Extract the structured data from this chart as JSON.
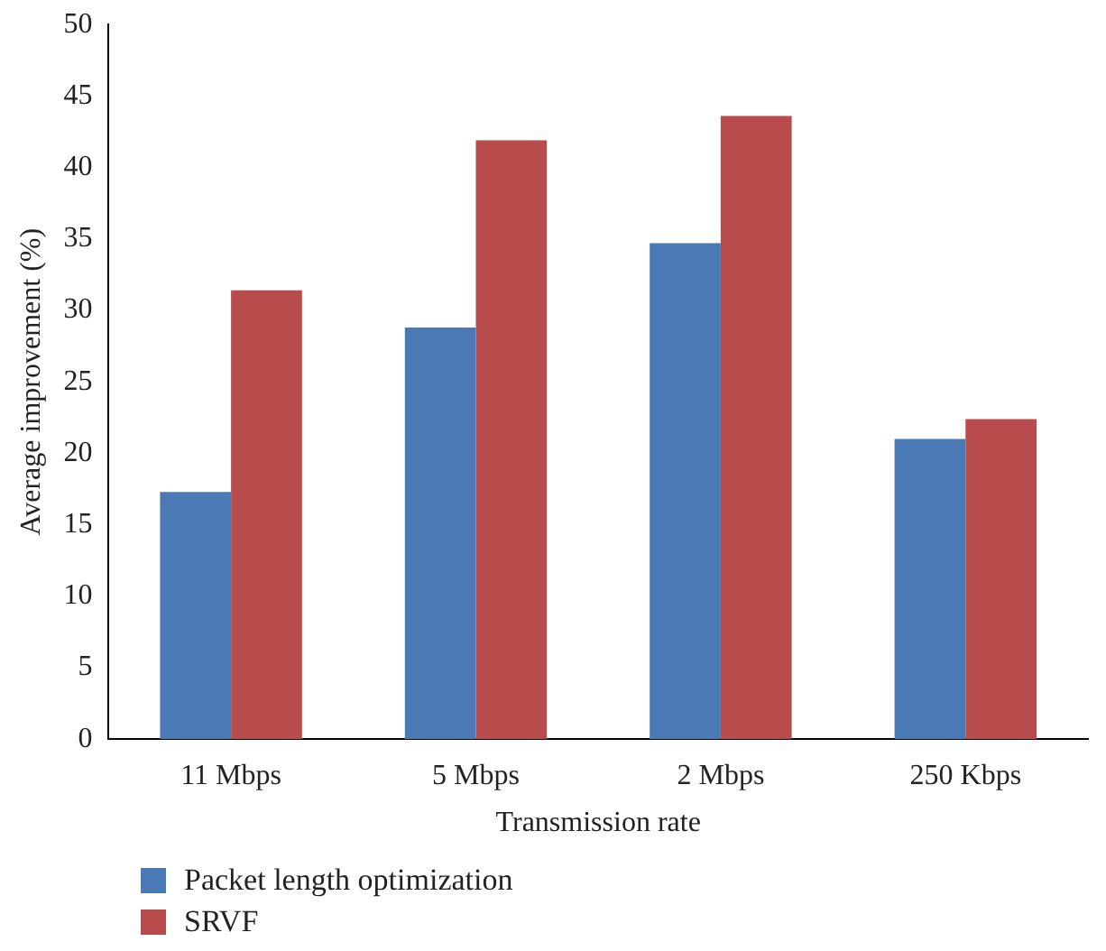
{
  "chart_data": {
    "type": "bar",
    "xlabel": "Transmission rate",
    "ylabel": "Average improvement (%)",
    "categories": [
      "11 Mbps",
      "5 Mbps",
      "2 Mbps",
      "250 Kbps"
    ],
    "series": [
      {
        "name": "Packet length optimization",
        "color": "#4a7ab5",
        "values": [
          17.3,
          28.8,
          34.7,
          21.0
        ]
      },
      {
        "name": "SRVF",
        "color": "#b84c4c",
        "values": [
          31.4,
          41.9,
          43.6,
          22.4
        ]
      }
    ],
    "ylim": [
      0,
      50
    ],
    "yticks": [
      0,
      5,
      10,
      15,
      20,
      25,
      30,
      35,
      40,
      45,
      50
    ],
    "grid": false,
    "legend": "bottom left"
  }
}
